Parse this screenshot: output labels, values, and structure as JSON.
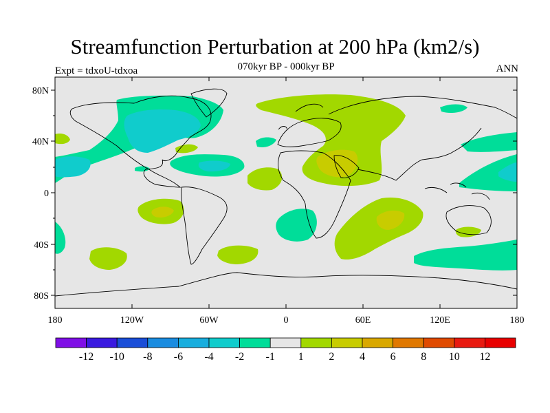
{
  "figure": {
    "title": "Streamfunction Perturbation at 200 hPa (km2/s)",
    "subtitle": "070kyr BP - 000kyr BP",
    "left_label": "Expt = tdxoU-tdxoa",
    "right_label": "ANN"
  },
  "map": {
    "projection": "cylindrical equidistant",
    "lon_range": [
      -180,
      180
    ],
    "lat_range": [
      -90,
      90
    ],
    "lat_ticks": [
      "80N",
      "40N",
      "0",
      "40S",
      "80S"
    ],
    "lon_ticks": [
      "180",
      "120W",
      "60W",
      "0",
      "60E",
      "120E",
      "180"
    ],
    "background_color": "#e6e6e6"
  },
  "colorbar": {
    "levels": [
      "-12",
      "-10",
      "-8",
      "-6",
      "-4",
      "-2",
      "-1",
      "1",
      "2",
      "4",
      "6",
      "8",
      "10",
      "12"
    ],
    "colors": [
      "#7f0fe6",
      "#3a1ae0",
      "#1a4ed8",
      "#1a8ce0",
      "#18aede",
      "#10cccc",
      "#00dd99",
      "#e6e6e6",
      "#a2d800",
      "#c8cc00",
      "#d9a800",
      "#e07800",
      "#e04a00",
      "#e81a10",
      "#e80000"
    ]
  },
  "chart_data": {
    "type": "heatmap",
    "variable": "Streamfunction Perturbation at 200 hPa (km2/s)",
    "units": "km2/s",
    "features": [
      {
        "region": "North America / Canada",
        "range": "-4 to -2",
        "min": -4
      },
      {
        "region": "North Pacific subtropics (~20N, 170W)",
        "range": "-4 to -2"
      },
      {
        "region": "Gulf of Mexico / subtropical Atlantic",
        "range": "-4 to -2"
      },
      {
        "region": "North Atlantic / Europe",
        "range": "1 to 2"
      },
      {
        "region": "Arabia / Middle East",
        "range": "2 to 4",
        "max": 4
      },
      {
        "region": "Tropical South Pacific (~15S, 100W)",
        "range": "2 to 4"
      },
      {
        "region": "South Indian Ocean (~15S, 85E)",
        "range": "2 to 4"
      },
      {
        "region": "Southern Ocean south of Australia",
        "range": "-2 to -1"
      },
      {
        "region": "South Atlantic (~25S, 0)",
        "range": "-2 to -1"
      },
      {
        "region": "Western Pacific (~20N, 180)",
        "range": "-4 to -2"
      }
    ]
  }
}
